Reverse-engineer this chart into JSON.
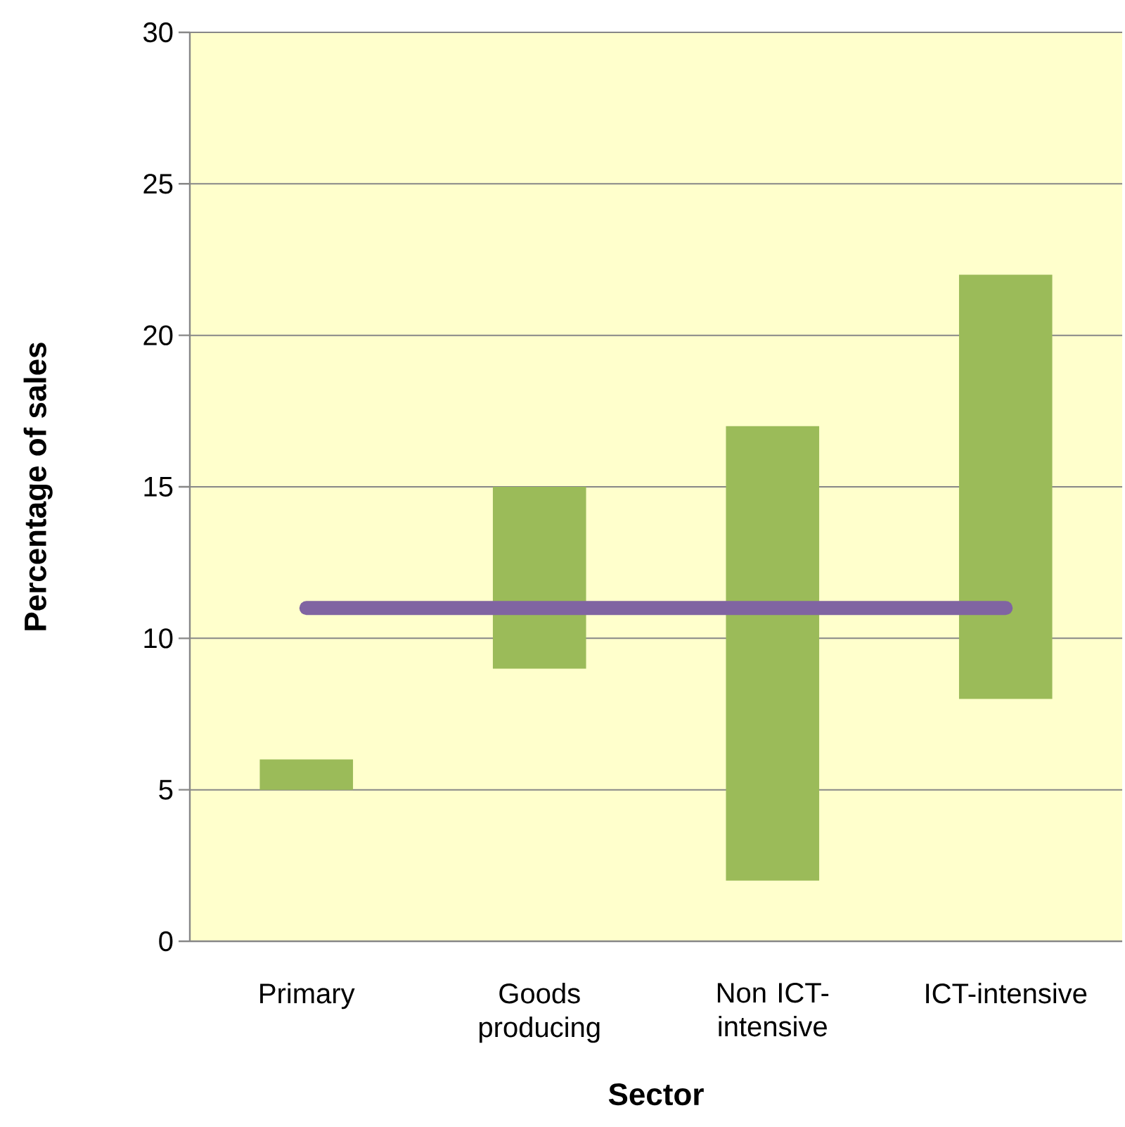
{
  "chart_data": {
    "type": "bar",
    "xlabel": "Sector",
    "ylabel": "Percentage of sales",
    "categories": [
      "Primary",
      "Goods producing",
      "Non ICT-intensive",
      "ICT-intensive"
    ],
    "series": [
      {
        "color": "#9bbb59",
        "base": [
          5,
          9,
          2,
          8
        ],
        "values": [
          1,
          6,
          15,
          14
        ]
      },
      {
        "type": "line",
        "color": "#8064a2",
        "values": [
          11,
          11,
          11,
          11
        ]
      }
    ],
    "ylim": [
      0,
      30
    ],
    "yticks": [
      0,
      5,
      10,
      15,
      20,
      25,
      30
    ],
    "grid": "y"
  }
}
